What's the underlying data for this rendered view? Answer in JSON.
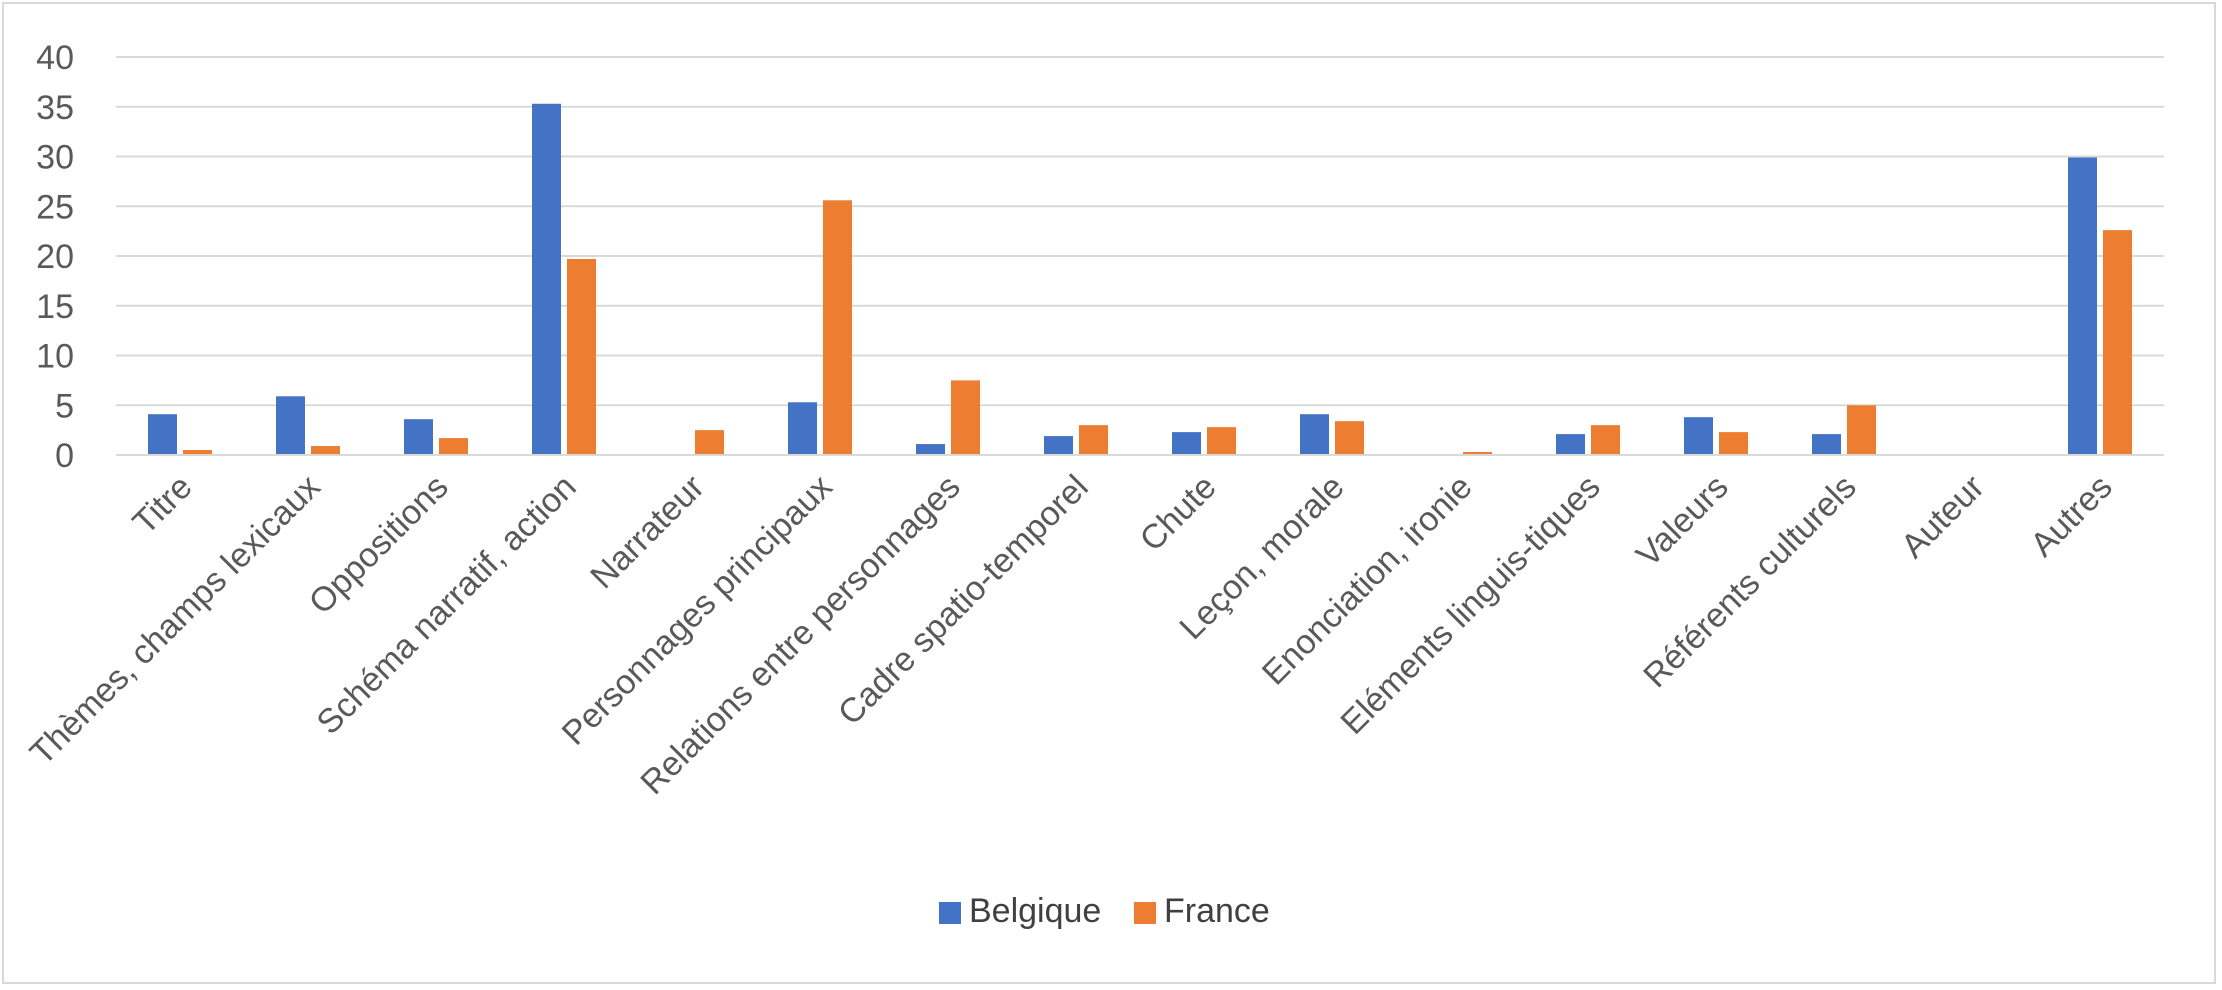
{
  "chart_data": {
    "type": "bar",
    "title": "",
    "xlabel": "",
    "ylabel": "",
    "ylim": [
      0,
      40
    ],
    "yticks": [
      0,
      5,
      10,
      15,
      20,
      25,
      30,
      35,
      40
    ],
    "grid": true,
    "legend_position": "bottom",
    "categories": [
      "Titre",
      "Thèmes, champs lexicaux",
      "Oppositions",
      "Schéma narratif, action",
      "Narrateur",
      "Personnages principaux",
      "Relations entre personnages",
      "Cadre spatio-temporel",
      "Chute",
      "Leçon, morale",
      "Enonciation, ironie",
      "Eléments linguis-tiques",
      "Valeurs",
      "Référents culturels",
      "Auteur",
      "Autres"
    ],
    "series": [
      {
        "name": "Belgique",
        "color": "#4472c4",
        "values": [
          4.1,
          5.9,
          3.6,
          35.3,
          0,
          5.3,
          1.1,
          1.9,
          2.3,
          4.1,
          0,
          2.1,
          3.8,
          2.1,
          0,
          29.9
        ]
      },
      {
        "name": "France",
        "color": "#ed7d31",
        "values": [
          0.5,
          0.9,
          1.7,
          19.7,
          2.5,
          25.6,
          7.5,
          3.0,
          2.8,
          3.4,
          0.3,
          3.0,
          2.3,
          5.0,
          0,
          22.6
        ]
      }
    ]
  }
}
